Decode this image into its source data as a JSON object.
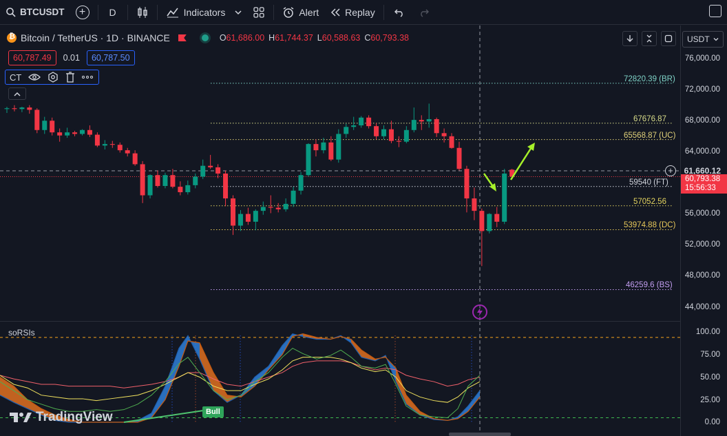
{
  "toolbar": {
    "symbol": "BTCUSDT",
    "interval": "D",
    "indicators_label": "Indicators",
    "alert_label": "Alert",
    "replay_label": "Replay"
  },
  "legend": {
    "title": "Bitcoin / TetherUS · 1D · BINANCE",
    "open_key": "O",
    "open": "61,686.00",
    "high_key": "H",
    "high": "61,744.37",
    "low_key": "L",
    "low": "60,588.63",
    "close_key": "C",
    "close": "60,793.38"
  },
  "trade": {
    "sell": "60,787.49",
    "spread": "0.01",
    "buy": "60,787.50"
  },
  "drawing_toolbar": {
    "label": "CT"
  },
  "currency_button": "USDT",
  "price_scale": {
    "ticks": [
      "76,000.00",
      "72,000.00",
      "68,000.00",
      "64,000.00",
      "56,000.00",
      "52,000.00",
      "48,000.00",
      "44,000.00"
    ],
    "crosshair_price": "61,660.12",
    "last_price": "60,793.38",
    "countdown": "15:56:33"
  },
  "fib_levels": [
    {
      "label": "72820.39 (BR)",
      "color": "#7fd3c7"
    },
    {
      "label": "67676.87",
      "color": "#d9dd8a"
    },
    {
      "label": "65568.87 (UC)",
      "color": "#e2d27a"
    },
    {
      "label": "59540 (FT)",
      "color": "#d1d4dc"
    },
    {
      "label": "57052.56",
      "color": "#e3d35f"
    },
    {
      "label": "53974.88 (DC)",
      "color": "#e7c85a"
    },
    {
      "label": "46259.6 (BS)",
      "color": "#c39ef1"
    }
  ],
  "indicator": {
    "title": "soRSIs",
    "scale": [
      "100.00",
      "75.00",
      "50.00",
      "25.00",
      "0.00"
    ],
    "bull_label": "Bull"
  },
  "watermark": "TradingView",
  "colors": {
    "up": "#089981",
    "down": "#f23645",
    "bg": "#131722"
  }
}
